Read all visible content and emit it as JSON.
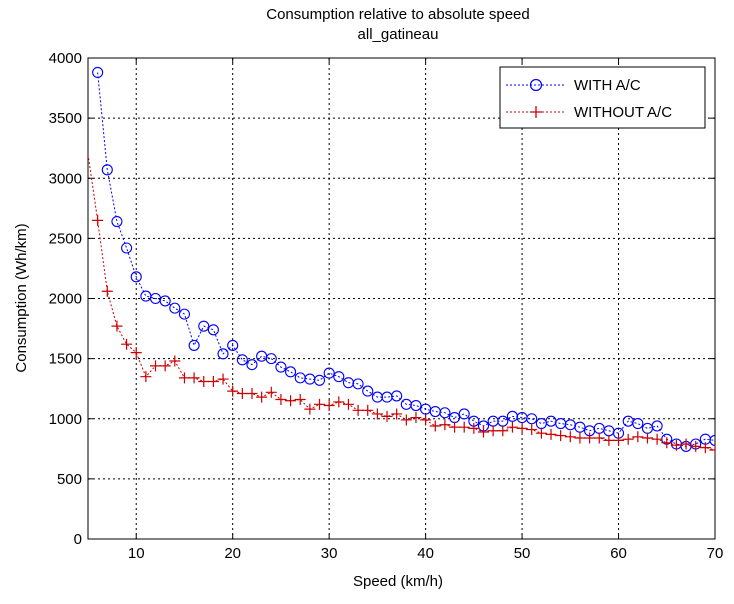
{
  "chart_data": {
    "type": "line",
    "title": "Consumption relative to absolute speed",
    "subtitle": "all_gatineau",
    "xlabel": "Speed (km/h)",
    "ylabel": "Consumption (Wh/km)",
    "xlim": [
      5,
      70
    ],
    "ylim": [
      0,
      4000
    ],
    "xticks": [
      10,
      20,
      30,
      40,
      50,
      60,
      70
    ],
    "yticks": [
      0,
      500,
      1000,
      1500,
      2000,
      2500,
      3000,
      3500,
      4000
    ],
    "grid": true,
    "legend_position": "top-right",
    "x": [
      6,
      7,
      8,
      9,
      10,
      11,
      12,
      13,
      14,
      15,
      16,
      17,
      18,
      19,
      20,
      21,
      22,
      23,
      24,
      25,
      26,
      27,
      28,
      29,
      30,
      31,
      32,
      33,
      34,
      35,
      36,
      37,
      38,
      39,
      40,
      41,
      42,
      43,
      44,
      45,
      46,
      47,
      48,
      49,
      50,
      51,
      52,
      53,
      54,
      55,
      56,
      57,
      58,
      59,
      60,
      61,
      62,
      63,
      64,
      65,
      66,
      67,
      68,
      69,
      70
    ],
    "series": [
      {
        "name": "WITH A/C",
        "color": "#0000ff",
        "marker": "circle",
        "values": [
          3880,
          3070,
          2640,
          2420,
          2180,
          2020,
          2000,
          1980,
          1920,
          1870,
          1610,
          1770,
          1740,
          1540,
          1610,
          1490,
          1450,
          1520,
          1500,
          1430,
          1390,
          1340,
          1330,
          1320,
          1380,
          1350,
          1300,
          1290,
          1230,
          1180,
          1180,
          1190,
          1120,
          1110,
          1080,
          1060,
          1050,
          1010,
          1040,
          980,
          940,
          980,
          980,
          1020,
          1010,
          1000,
          960,
          980,
          960,
          950,
          930,
          900,
          920,
          900,
          880,
          980,
          960,
          920,
          940,
          830,
          790,
          770,
          790,
          830,
          820
        ]
      },
      {
        "name": "WITHOUT A/C",
        "color": "#cc0000",
        "marker": "plus",
        "values": [
          2650,
          2060,
          1770,
          1620,
          1550,
          1350,
          1440,
          1440,
          1480,
          1340,
          1340,
          1310,
          1310,
          1330,
          1230,
          1210,
          1210,
          1180,
          1220,
          1160,
          1150,
          1160,
          1080,
          1120,
          1110,
          1140,
          1120,
          1070,
          1070,
          1040,
          1020,
          1040,
          990,
          1010,
          990,
          940,
          950,
          930,
          930,
          920,
          890,
          900,
          900,
          930,
          920,
          910,
          880,
          870,
          860,
          850,
          840,
          840,
          840,
          820,
          820,
          830,
          850,
          840,
          830,
          800,
          780,
          790,
          770,
          760,
          740
        ]
      }
    ]
  }
}
